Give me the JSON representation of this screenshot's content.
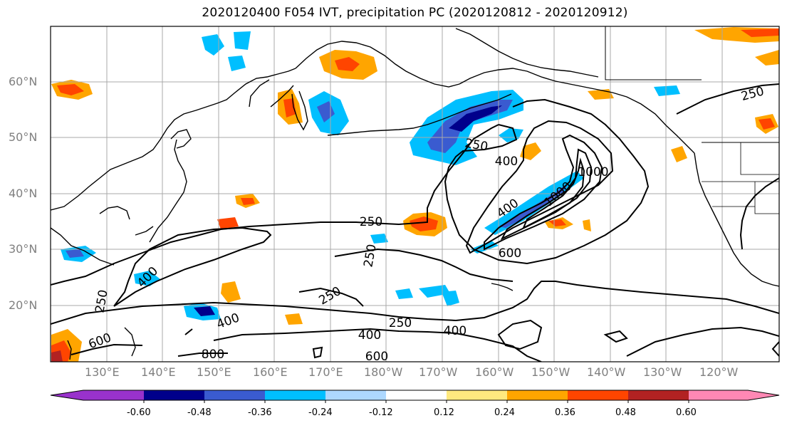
{
  "title": "2020120400 F054 IVT, precipitation PC (2020120812 - 2020120912)",
  "latitude_labels": [
    "60°N",
    "50°N",
    "40°N",
    "30°N",
    "20°N"
  ],
  "longitude_labels": [
    "130°E",
    "140°E",
    "150°E",
    "160°E",
    "170°E",
    "180°W",
    "170°W",
    "160°W",
    "150°W",
    "140°W",
    "130°W",
    "120°W"
  ],
  "contour_labels": [
    "250",
    "250",
    "250",
    "250",
    "250",
    "250",
    "250",
    "400",
    "400",
    "400",
    "400",
    "400",
    "400",
    "600",
    "600",
    "600",
    "800",
    "1000"
  ],
  "colorbar": {
    "tick_labels": [
      "-0.60",
      "-0.48",
      "-0.36",
      "-0.24",
      "-0.12",
      "0.12",
      "0.24",
      "0.36",
      "0.48",
      "0.60"
    ],
    "colors": [
      "#9932cc",
      "#00008b",
      "#3a5bd0",
      "#00bfff",
      "#add8ff",
      "#ffffff",
      "#ffe97f",
      "#ffa500",
      "#ff4500",
      "#b22222",
      "#ff88b4"
    ]
  },
  "colors": {
    "contour": "#000000",
    "grid": "#a9a9a9",
    "land_outline": "#000000",
    "axis_label": "#808080"
  }
}
